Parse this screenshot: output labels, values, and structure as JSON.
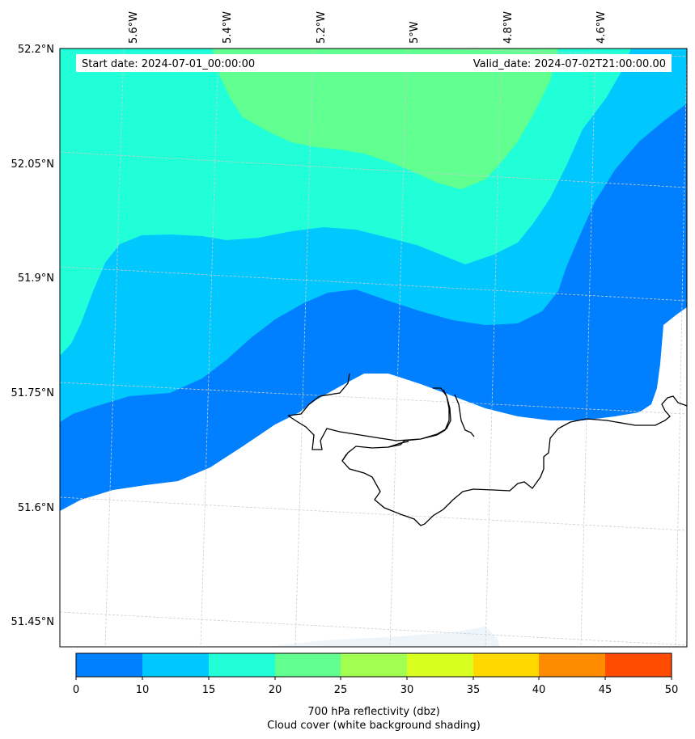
{
  "map": {
    "start_date": "Start date: 2024-07-01_00:00:00",
    "valid_date": "Valid_date: 2024-07-02T21:00:00.00",
    "lon_labels": [
      "5.6°W",
      "5.4°W",
      "5.2°W",
      "5°W",
      "4.8°W",
      "4.6°W"
    ],
    "lat_labels": [
      "52.2°N",
      "52.05°N",
      "51.9°N",
      "51.75°N",
      "51.6°N",
      "51.45°N"
    ],
    "colors": {
      "band_0_10": "#0080ff",
      "band_10_15": "#00c8ff",
      "band_15_20": "#20ffd8",
      "band_20_25": "#60ff90",
      "band_25_30": "#a0ff50",
      "band_30_35": "#d8ff20",
      "band_35_40": "#ffd800",
      "band_40_45": "#ff8c00",
      "band_45_50": "#ff4c00",
      "cloud_cover": "#ffffff",
      "coastline": "#000000",
      "gridline": "#cccccc"
    }
  },
  "colorbar": {
    "ticks": [
      "0",
      "10",
      "15",
      "20",
      "25",
      "30",
      "35",
      "40",
      "45",
      "50"
    ],
    "label_line1": "700 hPa reflectivity (dbz)",
    "label_line2": "Cloud cover (white background shading)"
  }
}
